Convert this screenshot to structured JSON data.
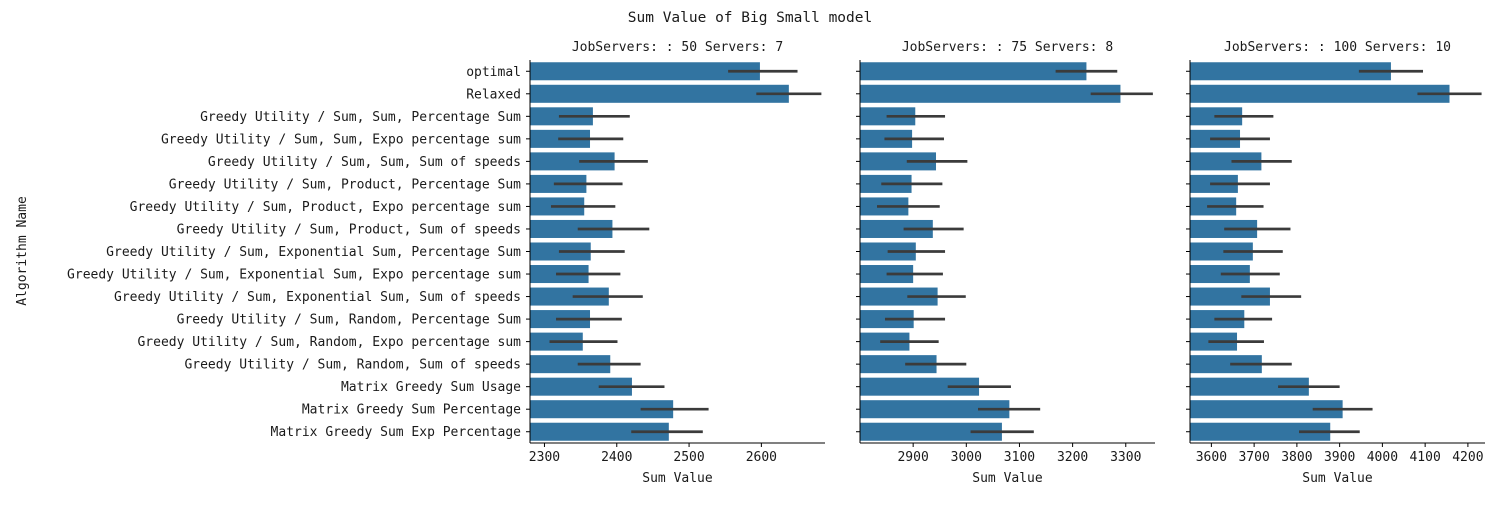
{
  "chart_data": {
    "type": "bar",
    "orientation": "horizontal",
    "title": "Sum Value of Big Small model",
    "ylabel": "Algorithm Name",
    "categories": [
      "optimal",
      "Relaxed",
      "Greedy Utility / Sum, Sum, Percentage Sum",
      "Greedy Utility / Sum, Sum, Expo percentage sum",
      "Greedy Utility / Sum, Sum, Sum of speeds",
      "Greedy Utility / Sum, Product, Percentage Sum",
      "Greedy Utility / Sum, Product, Expo percentage sum",
      "Greedy Utility / Sum, Product, Sum of speeds",
      "Greedy Utility / Sum, Exponential Sum, Percentage Sum",
      "Greedy Utility / Sum, Exponential Sum, Expo percentage sum",
      "Greedy Utility / Sum, Exponential Sum, Sum of speeds",
      "Greedy Utility / Sum, Random, Percentage Sum",
      "Greedy Utility / Sum, Random, Expo percentage sum",
      "Greedy Utility / Sum, Random, Sum of speeds",
      "Matrix Greedy Sum Usage",
      "Matrix Greedy Sum Percentage",
      "Matrix Greedy Sum Exp Percentage"
    ],
    "bar_color": "#3274a1",
    "errorbar_color": "#3b3b3b",
    "grid": false,
    "panels": [
      {
        "title": "JobServers: : 50 Servers: 7",
        "xlabel": "Sum Value",
        "xlim": [
          2280,
          2688
        ],
        "xticks": [
          2300,
          2400,
          2500,
          2600
        ],
        "values": [
          2598,
          2638,
          2367,
          2363,
          2397,
          2358,
          2355,
          2394,
          2364,
          2361,
          2389,
          2363,
          2353,
          2391,
          2421,
          2478,
          2472
        ],
        "ci": [
          [
            2554,
            2650
          ],
          [
            2593,
            2683
          ],
          [
            2320,
            2418
          ],
          [
            2319,
            2409
          ],
          [
            2348,
            2443
          ],
          [
            2313,
            2408
          ],
          [
            2309,
            2398
          ],
          [
            2346,
            2445
          ],
          [
            2320,
            2411
          ],
          [
            2316,
            2405
          ],
          [
            2339,
            2436
          ],
          [
            2316,
            2407
          ],
          [
            2307,
            2401
          ],
          [
            2346,
            2433
          ],
          [
            2375,
            2466
          ],
          [
            2433,
            2527
          ],
          [
            2420,
            2519
          ]
        ]
      },
      {
        "title": "JobServers: : 75 Servers: 8",
        "xlabel": "Sum Value",
        "xlim": [
          2800,
          3355
        ],
        "xticks": [
          2900,
          3000,
          3100,
          3200,
          3300
        ],
        "values": [
          3226,
          3290,
          2904,
          2898,
          2943,
          2897,
          2891,
          2937,
          2905,
          2900,
          2946,
          2901,
          2893,
          2944,
          3024,
          3081,
          3067
        ],
        "ci": [
          [
            3168,
            3284
          ],
          [
            3234,
            3351
          ],
          [
            2850,
            2960
          ],
          [
            2846,
            2958
          ],
          [
            2888,
            3002
          ],
          [
            2840,
            2955
          ],
          [
            2832,
            2950
          ],
          [
            2882,
            2995
          ],
          [
            2852,
            2960
          ],
          [
            2850,
            2956
          ],
          [
            2889,
            2999
          ],
          [
            2847,
            2960
          ],
          [
            2838,
            2948
          ],
          [
            2885,
            3000
          ],
          [
            2965,
            3084
          ],
          [
            3022,
            3139
          ],
          [
            3008,
            3127
          ]
        ]
      },
      {
        "title": "JobServers: : 100 Servers: 10",
        "xlabel": "Sum Value",
        "xlim": [
          3550,
          4240
        ],
        "xticks": [
          3600,
          3700,
          3800,
          3900,
          4000,
          4100,
          4200
        ],
        "values": [
          4020,
          4157,
          3672,
          3667,
          3717,
          3662,
          3658,
          3707,
          3697,
          3690,
          3737,
          3677,
          3660,
          3718,
          3828,
          3907,
          3878
        ],
        "ci": [
          [
            3945,
            4095
          ],
          [
            4082,
            4232
          ],
          [
            3607,
            3745
          ],
          [
            3597,
            3737
          ],
          [
            3647,
            3788
          ],
          [
            3597,
            3737
          ],
          [
            3590,
            3722
          ],
          [
            3630,
            3785
          ],
          [
            3628,
            3767
          ],
          [
            3622,
            3760
          ],
          [
            3670,
            3810
          ],
          [
            3607,
            3742
          ],
          [
            3593,
            3723
          ],
          [
            3644,
            3788
          ],
          [
            3756,
            3900
          ],
          [
            3837,
            3977
          ],
          [
            3805,
            3947
          ]
        ]
      }
    ]
  }
}
